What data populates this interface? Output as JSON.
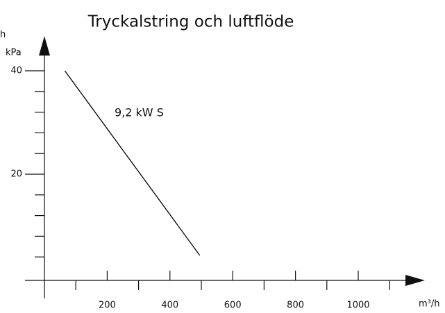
{
  "chart_data": {
    "type": "line",
    "title": "Tryckalstring och luftflöde",
    "corner_label": "h",
    "ylabel": "kPa",
    "xlabel": "m³/h",
    "series": [
      {
        "name": "9,2 kW S",
        "color": "#000000",
        "x": [
          65,
          495
        ],
        "values": [
          40,
          4.3
        ]
      }
    ],
    "xlim": [
      0,
      1000
    ],
    "ylim": [
      0,
      40
    ],
    "xticks": [
      200,
      400,
      600,
      800,
      1000
    ],
    "xminor_ticks": [
      100,
      300,
      500,
      700,
      900,
      1100
    ],
    "yticks": [
      20,
      40
    ],
    "yminor_ticks": [
      4,
      8,
      12,
      16,
      24,
      28,
      32,
      36
    ]
  }
}
